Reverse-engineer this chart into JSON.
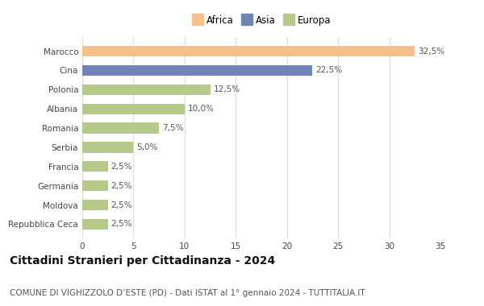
{
  "categories": [
    "Marocco",
    "Cina",
    "Polonia",
    "Albania",
    "Romania",
    "Serbia",
    "Francia",
    "Germania",
    "Moldova",
    "Repubblica Ceca"
  ],
  "values": [
    32.5,
    22.5,
    12.5,
    10.0,
    7.5,
    5.0,
    2.5,
    2.5,
    2.5,
    2.5
  ],
  "colors": [
    "#F5C08A",
    "#6F85B8",
    "#B5C98A",
    "#B5C98A",
    "#B5C98A",
    "#B5C98A",
    "#B5C98A",
    "#B5C98A",
    "#B5C98A",
    "#B5C98A"
  ],
  "labels": [
    "32,5%",
    "22,5%",
    "12,5%",
    "10,0%",
    "7,5%",
    "5,0%",
    "2,5%",
    "2,5%",
    "2,5%",
    "2,5%"
  ],
  "legend_labels": [
    "Africa",
    "Asia",
    "Europa"
  ],
  "legend_colors": [
    "#F5C08A",
    "#6F85B8",
    "#B5C98A"
  ],
  "xlim": [
    0,
    35
  ],
  "xticks": [
    0,
    5,
    10,
    15,
    20,
    25,
    30,
    35
  ],
  "title": "Cittadini Stranieri per Cittadinanza - 2024",
  "subtitle": "COMUNE DI VIGHIZZOLO D’ESTE (PD) - Dati ISTAT al 1° gennaio 2024 - TUTTITALIA.IT",
  "title_fontsize": 10,
  "subtitle_fontsize": 7.5,
  "label_fontsize": 7.5,
  "tick_fontsize": 7.5,
  "background_color": "#ffffff",
  "grid_color": "#dddddd"
}
